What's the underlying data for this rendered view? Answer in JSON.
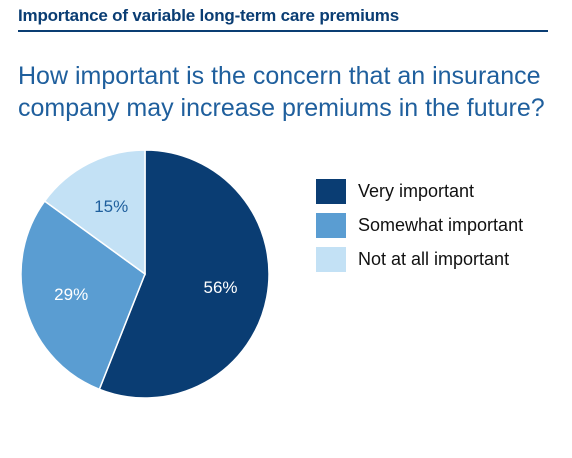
{
  "header": {
    "title": "Importance of variable long-term care premiums"
  },
  "question": "How important is the concern that an insurance company may increase premiums in the future?",
  "chart_data": {
    "type": "pie",
    "categories": [
      "Very important",
      "Somewhat important",
      "Not at all important"
    ],
    "values": [
      56,
      29,
      15
    ],
    "labels": [
      "56%",
      "29%",
      "15%"
    ],
    "colors": [
      "#0a3d73",
      "#5a9dd2",
      "#c3e1f5"
    ],
    "label_colors": [
      "#ffffff",
      "#ffffff",
      "#1f5f9d"
    ],
    "legend_position": "right",
    "start": "top, clockwise"
  }
}
